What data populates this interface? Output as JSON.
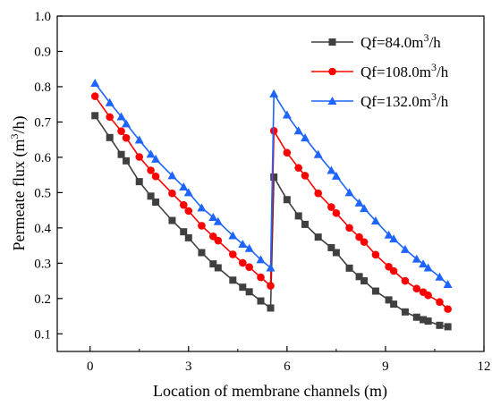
{
  "chart_data": {
    "type": "line",
    "xlabel": "Location of membrane channels (m)",
    "ylabel_main": "Permeate flux (m",
    "ylabel_sup": "3",
    "ylabel_tail": "/h)",
    "xlim": [
      -1,
      12
    ],
    "ylim": [
      0.05,
      1.0
    ],
    "xticks": [
      0,
      3,
      6,
      9,
      12
    ],
    "yticks": [
      0.1,
      0.2,
      0.3,
      0.4,
      0.5,
      0.6,
      0.7,
      0.8,
      0.9,
      1.0
    ],
    "xtick_labels": [
      "0",
      "3",
      "6",
      "9",
      "12"
    ],
    "ytick_labels": [
      "0.1",
      "0.2",
      "0.3",
      "0.4",
      "0.5",
      "0.6",
      "0.7",
      "0.8",
      "0.9",
      "1.0"
    ],
    "grid": false,
    "legend_position": "top-right",
    "series": [
      {
        "name_main": "Qf=84.0m",
        "name_sup": "3",
        "name_tail": "/h",
        "color": "#404040",
        "marker": "square",
        "x": [
          0.15,
          0.6,
          0.95,
          1.1,
          1.5,
          1.85,
          2.0,
          2.5,
          2.85,
          3.0,
          3.4,
          3.75,
          3.9,
          4.35,
          4.65,
          4.85,
          5.2,
          5.5,
          5.6,
          6.0,
          6.35,
          6.55,
          6.95,
          7.35,
          7.5,
          7.9,
          8.2,
          8.35,
          8.7,
          9.1,
          9.25,
          9.6,
          9.95,
          10.15,
          10.3,
          10.65,
          10.9
        ],
        "y": [
          0.718,
          0.656,
          0.608,
          0.59,
          0.531,
          0.49,
          0.473,
          0.421,
          0.389,
          0.372,
          0.33,
          0.298,
          0.287,
          0.252,
          0.232,
          0.219,
          0.193,
          0.173,
          0.544,
          0.48,
          0.434,
          0.41,
          0.374,
          0.344,
          0.33,
          0.286,
          0.262,
          0.25,
          0.221,
          0.196,
          0.184,
          0.162,
          0.147,
          0.14,
          0.136,
          0.124,
          0.12
        ]
      },
      {
        "name_main": "Qf=108.0m",
        "name_sup": "3",
        "name_tail": "/h",
        "color": "#ff0000",
        "marker": "circle",
        "x": [
          0.15,
          0.6,
          0.95,
          1.1,
          1.5,
          1.85,
          2.0,
          2.5,
          2.85,
          3.0,
          3.4,
          3.75,
          3.9,
          4.35,
          4.65,
          4.85,
          5.2,
          5.5,
          5.6,
          6.0,
          6.35,
          6.55,
          6.95,
          7.35,
          7.5,
          7.9,
          8.2,
          8.35,
          8.7,
          9.1,
          9.25,
          9.6,
          9.95,
          10.15,
          10.3,
          10.65,
          10.9
        ],
        "y": [
          0.773,
          0.714,
          0.674,
          0.655,
          0.601,
          0.563,
          0.546,
          0.498,
          0.465,
          0.448,
          0.406,
          0.376,
          0.364,
          0.325,
          0.301,
          0.289,
          0.26,
          0.236,
          0.675,
          0.613,
          0.57,
          0.548,
          0.498,
          0.459,
          0.442,
          0.4,
          0.374,
          0.36,
          0.324,
          0.29,
          0.278,
          0.25,
          0.228,
          0.218,
          0.209,
          0.19,
          0.17
        ]
      },
      {
        "name_main": "Qf=132.0m",
        "name_sup": "3",
        "name_tail": "/h",
        "color": "#1e64ff",
        "marker": "triangle",
        "x": [
          0.15,
          0.6,
          0.95,
          1.1,
          1.5,
          1.85,
          2.0,
          2.5,
          2.85,
          3.0,
          3.4,
          3.75,
          3.9,
          4.35,
          4.65,
          4.85,
          5.2,
          5.5,
          5.6,
          6.0,
          6.35,
          6.55,
          6.95,
          7.35,
          7.5,
          7.9,
          8.2,
          8.35,
          8.7,
          9.1,
          9.25,
          9.6,
          9.95,
          10.15,
          10.3,
          10.65,
          10.9
        ],
        "y": [
          0.81,
          0.755,
          0.715,
          0.695,
          0.649,
          0.609,
          0.595,
          0.548,
          0.516,
          0.5,
          0.457,
          0.43,
          0.418,
          0.378,
          0.354,
          0.342,
          0.31,
          0.287,
          0.78,
          0.72,
          0.675,
          0.655,
          0.608,
          0.563,
          0.547,
          0.5,
          0.471,
          0.455,
          0.42,
          0.38,
          0.369,
          0.339,
          0.312,
          0.298,
          0.287,
          0.261,
          0.24
        ]
      }
    ]
  }
}
